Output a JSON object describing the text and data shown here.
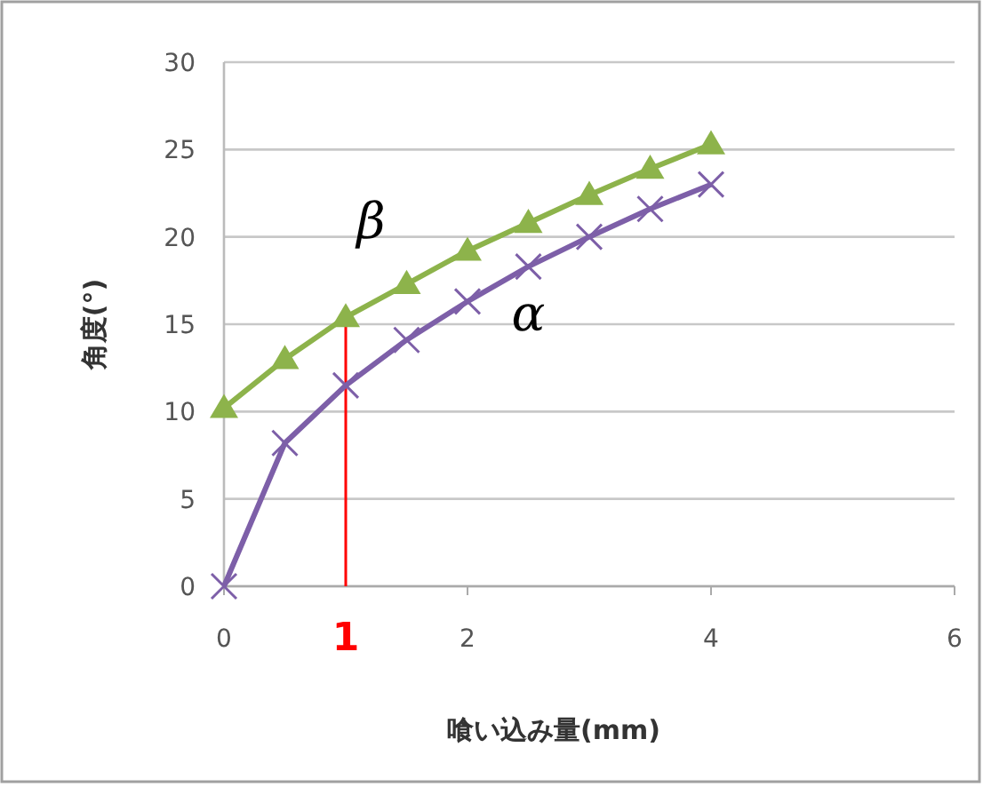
{
  "chart_data": {
    "type": "line",
    "xlabel": "喰い込み量(mm)",
    "ylabel": "角度(°)",
    "x": [
      0,
      0.5,
      1,
      1.5,
      2,
      2.5,
      3,
      3.5,
      4
    ],
    "series": [
      {
        "name": "β",
        "color": "#8db34b",
        "marker": "triangle",
        "values": [
          10.2,
          13.0,
          15.4,
          17.3,
          19.2,
          20.8,
          22.4,
          23.9,
          25.3
        ]
      },
      {
        "name": "α",
        "color": "#7d5fa8",
        "marker": "cross",
        "values": [
          0,
          8.2,
          11.5,
          14.1,
          16.3,
          18.3,
          20.0,
          21.6,
          23.0
        ]
      }
    ],
    "xlim": [
      0,
      6
    ],
    "xticks": [
      0,
      2,
      4,
      6
    ],
    "ylim": [
      0,
      30
    ],
    "yticks": [
      0,
      5,
      10,
      15,
      20,
      25,
      30
    ],
    "grid": "y",
    "ref_lines": [
      {
        "axis": "x",
        "value": 1,
        "label": "1",
        "color": "#ff0000"
      }
    ]
  }
}
